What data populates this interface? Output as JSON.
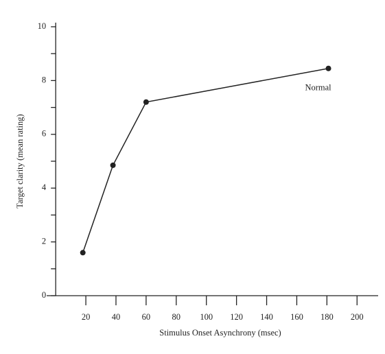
{
  "chart_data": {
    "type": "line",
    "x_label": "Stimulus Onset Asynchrony (msec)",
    "y_label": "Target clarity (mean rating)",
    "x": [
      18,
      38,
      60,
      181
    ],
    "series": [
      {
        "name": "Normal",
        "color": "#222222",
        "values": [
          1.6,
          4.85,
          7.2,
          8.45
        ]
      }
    ],
    "xlim": [
      -6,
      214
    ],
    "ylim": [
      0,
      10
    ],
    "xticks": [
      20,
      40,
      60,
      80,
      100,
      120,
      140,
      160,
      180,
      200
    ],
    "yticks": [
      0,
      2,
      4,
      6,
      8,
      10
    ],
    "yminor_ticks": [
      1,
      3,
      5,
      7,
      9
    ],
    "grid": false
  }
}
